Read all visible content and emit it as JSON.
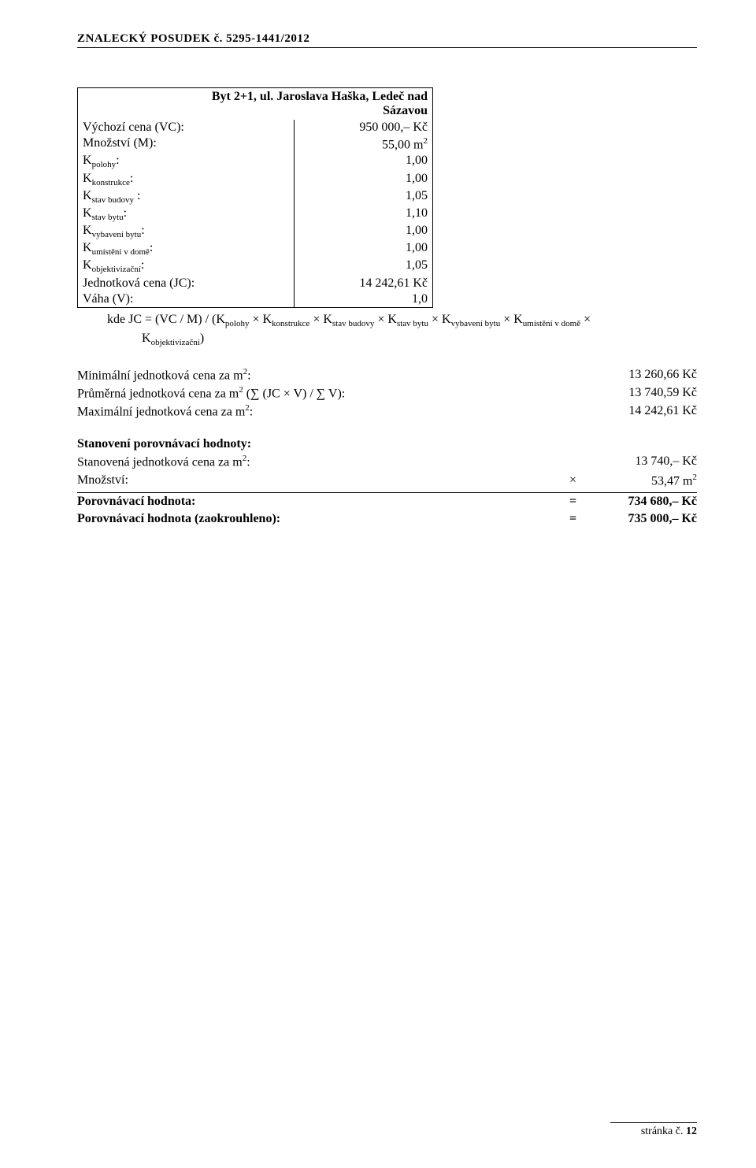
{
  "header": "ZNALECKÝ   POSUDEK č. 5295-1441/2012",
  "table": {
    "title_l1": "Byt 2+1, ul. Jaroslava Haška, Ledeč nad",
    "title_l2": "Sázavou",
    "rows": {
      "vc_label": "Výchozí cena (VC):",
      "vc_value": "950 000,– Kč",
      "m_label": "Množství (M):",
      "m_value_num": "55,00 m",
      "k_polohy_label": "K",
      "k_polohy_sub": "polohy",
      "k_polohy_value": "1,00",
      "k_konstrukce_label": "K",
      "k_konstrukce_sub": "konstrukce",
      "k_konstrukce_value": "1,00",
      "k_stavbudovy_label": "K",
      "k_stavbudovy_sub": "stav budovy",
      "k_stavbudovy_value": "1,05",
      "k_stavbytu_label": "K",
      "k_stavbytu_sub": "stav bytu",
      "k_stavbytu_value": "1,10",
      "k_vybaveni_label": "K",
      "k_vybaveni_sub": "vybavení bytu",
      "k_vybaveni_value": "1,00",
      "k_umisteni_label": "K",
      "k_umisteni_sub": "umístění v domě",
      "k_umisteni_value": "1,00",
      "k_obj_label": "K",
      "k_obj_sub": "objektivizační",
      "k_obj_value": "1,05",
      "jc_label": "Jednotková cena (JC):",
      "jc_value": "14 242,61 Kč",
      "v_label": "Váha (V):",
      "v_value": "1,0"
    }
  },
  "formula": {
    "prefix": "kde JC = (VC / M) / (K",
    "s1": "polohy",
    "times1": " × K",
    "s2": "konstrukce",
    "times2": " × K",
    "s3": "stav budovy",
    "times3": "  × K",
    "s4": "stav bytu",
    "times4": " × K",
    "s5": "vybavení bytu",
    "times5": " × K",
    "s6": "umístění v domě",
    "times6": " ×",
    "line2_k": "K",
    "s7": "objektivizační",
    "line2_end": ")"
  },
  "results": {
    "min_label_a": "Minimální jednotková cena za m",
    "min_label_b": ":",
    "min_value": "13 260,66 Kč",
    "avg_label_a": "Průměrná jednotková cena za m",
    "avg_label_b": " (∑ (JC × V)   /   ∑ V):",
    "avg_value": "13 740,59 Kč",
    "max_label_a": "Maximální jednotková cena za m",
    "max_label_b": ":",
    "max_value": "14 242,61 Kč"
  },
  "final": {
    "section": "Stanovení porovnávací hodnoty:",
    "r1_label_a": "Stanovená jednotková cena za m",
    "r1_label_b": ":",
    "r1_op": "",
    "r1_val": "13 740,– Kč",
    "r2_label": "Množství:",
    "r2_op": "×",
    "r2_val_num": "53,47 m",
    "r3_label": "Porovnávací hodnota:",
    "r3_op": "=",
    "r3_val": "734 680,– Kč",
    "r4_label": "Porovnávací hodnota (zaokrouhleno):",
    "r4_op": "=",
    "r4_val": "735 000,– Kč"
  },
  "footer": {
    "label": "stránka č. ",
    "page": "12"
  }
}
